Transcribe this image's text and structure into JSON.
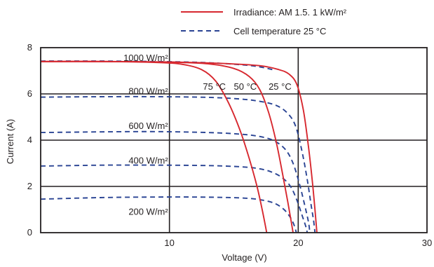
{
  "chart_data": {
    "type": "line",
    "title": "",
    "xlabel": "Voltage (V)",
    "ylabel": "Current (A)",
    "xlim": [
      0,
      30
    ],
    "ylim": [
      0,
      8
    ],
    "x_ticks": [
      "10",
      "20",
      "30"
    ],
    "y_ticks": [
      "0",
      "2",
      "4",
      "6",
      "8"
    ],
    "grid": true,
    "colors": {
      "temperature": "#d7282f",
      "irradiance": "#2a4494",
      "frame": "#231f20"
    },
    "legend": [
      {
        "label": "Irradiance: AM 1.5. 1 kW/m²",
        "style": "solid",
        "color": "#d7282f"
      },
      {
        "label": "Cell temperature 25 °C",
        "style": "dashed",
        "color": "#2a4494"
      }
    ],
    "series": [
      {
        "name": "25 °C",
        "group": "temperature",
        "style": "solid",
        "points": [
          [
            0,
            7.4
          ],
          [
            5,
            7.4
          ],
          [
            10,
            7.38
          ],
          [
            14,
            7.32
          ],
          [
            17,
            7.22
          ],
          [
            18.5,
            7.05
          ],
          [
            19.3,
            6.85
          ],
          [
            19.9,
            6.4
          ],
          [
            20.4,
            5.3
          ],
          [
            20.8,
            3.7
          ],
          [
            21.1,
            2.2
          ],
          [
            21.3,
            1.0
          ],
          [
            21.45,
            0
          ]
        ]
      },
      {
        "name": "50 °C",
        "group": "temperature",
        "style": "solid",
        "points": [
          [
            0,
            7.4
          ],
          [
            5,
            7.4
          ],
          [
            10,
            7.37
          ],
          [
            13,
            7.3
          ],
          [
            15,
            7.1
          ],
          [
            16.2,
            6.75
          ],
          [
            17,
            6.2
          ],
          [
            17.7,
            5.2
          ],
          [
            18.3,
            3.9
          ],
          [
            18.8,
            2.5
          ],
          [
            19.2,
            1.3
          ],
          [
            19.45,
            0.5
          ],
          [
            19.6,
            0
          ]
        ]
      },
      {
        "name": "75 °C",
        "group": "temperature",
        "style": "solid",
        "points": [
          [
            0,
            7.4
          ],
          [
            5,
            7.4
          ],
          [
            9,
            7.36
          ],
          [
            11,
            7.28
          ],
          [
            12.5,
            7.05
          ],
          [
            13.6,
            6.55
          ],
          [
            14.6,
            5.6
          ],
          [
            15.5,
            4.4
          ],
          [
            16.2,
            3.2
          ],
          [
            16.8,
            2.0
          ],
          [
            17.2,
            1.0
          ],
          [
            17.45,
            0.3
          ],
          [
            17.55,
            0
          ]
        ]
      },
      {
        "name": "1000 W/m²",
        "group": "irradiance",
        "style": "dashed",
        "points": [
          [
            0,
            7.42
          ],
          [
            5,
            7.42
          ],
          [
            9,
            7.4
          ],
          [
            12,
            7.37
          ],
          [
            14,
            7.32
          ],
          [
            16,
            7.24
          ],
          [
            17.2,
            7.15
          ],
          [
            18,
            7.05
          ]
        ]
      },
      {
        "name": "800 W/m²",
        "group": "irradiance",
        "style": "dashed",
        "points": [
          [
            0,
            5.86
          ],
          [
            5,
            5.88
          ],
          [
            9,
            5.88
          ],
          [
            13,
            5.85
          ],
          [
            15.5,
            5.78
          ],
          [
            17,
            5.68
          ],
          [
            18.3,
            5.5
          ],
          [
            19.2,
            5.15
          ],
          [
            19.8,
            4.6
          ],
          [
            20.3,
            3.5
          ],
          [
            20.7,
            2.3
          ],
          [
            21,
            1.2
          ],
          [
            21.2,
            0.5
          ],
          [
            21.3,
            0
          ]
        ]
      },
      {
        "name": "600 W/m²",
        "group": "irradiance",
        "style": "dashed",
        "points": [
          [
            0,
            4.33
          ],
          [
            5,
            4.36
          ],
          [
            9,
            4.37
          ],
          [
            13,
            4.33
          ],
          [
            15.5,
            4.26
          ],
          [
            17,
            4.16
          ],
          [
            18.1,
            3.98
          ],
          [
            19,
            3.6
          ],
          [
            19.6,
            3.0
          ],
          [
            20.1,
            2.1
          ],
          [
            20.5,
            1.2
          ],
          [
            20.8,
            0.45
          ],
          [
            20.9,
            0
          ]
        ]
      },
      {
        "name": "400 W/m²",
        "group": "irradiance",
        "style": "dashed",
        "points": [
          [
            0,
            2.88
          ],
          [
            5,
            2.92
          ],
          [
            9,
            2.92
          ],
          [
            13,
            2.9
          ],
          [
            15.5,
            2.85
          ],
          [
            16.8,
            2.78
          ],
          [
            17.8,
            2.65
          ],
          [
            18.7,
            2.4
          ],
          [
            19.4,
            2.0
          ],
          [
            19.9,
            1.4
          ],
          [
            20.3,
            0.75
          ],
          [
            20.6,
            0.25
          ],
          [
            20.7,
            0
          ]
        ]
      },
      {
        "name": "200 W/m²",
        "group": "irradiance",
        "style": "dashed",
        "points": [
          [
            0,
            1.45
          ],
          [
            5,
            1.52
          ],
          [
            9,
            1.54
          ],
          [
            12,
            1.54
          ],
          [
            14.5,
            1.52
          ],
          [
            16.2,
            1.48
          ],
          [
            17.3,
            1.4
          ],
          [
            18.2,
            1.26
          ],
          [
            18.9,
            1.0
          ],
          [
            19.4,
            0.65
          ],
          [
            19.7,
            0.3
          ],
          [
            19.85,
            0
          ]
        ]
      }
    ],
    "annotations": [
      {
        "text": "1000 W/m²",
        "x": 10,
        "y": 7.55,
        "anchor": "end"
      },
      {
        "text": "800 W/m²",
        "x": 10,
        "y": 6.1,
        "anchor": "end"
      },
      {
        "text": "600 W/m²",
        "x": 10,
        "y": 4.6,
        "anchor": "end"
      },
      {
        "text": "400 W/m²",
        "x": 10,
        "y": 3.1,
        "anchor": "end"
      },
      {
        "text": "200 W/m²",
        "x": 10,
        "y": 0.9,
        "anchor": "end"
      },
      {
        "text": "75 °C",
        "x": 12.6,
        "y": 6.3,
        "anchor": "start"
      },
      {
        "text": "50 °C",
        "x": 15.0,
        "y": 6.3,
        "anchor": "start"
      },
      {
        "text": "25 °C",
        "x": 17.7,
        "y": 6.3,
        "anchor": "start"
      }
    ]
  }
}
